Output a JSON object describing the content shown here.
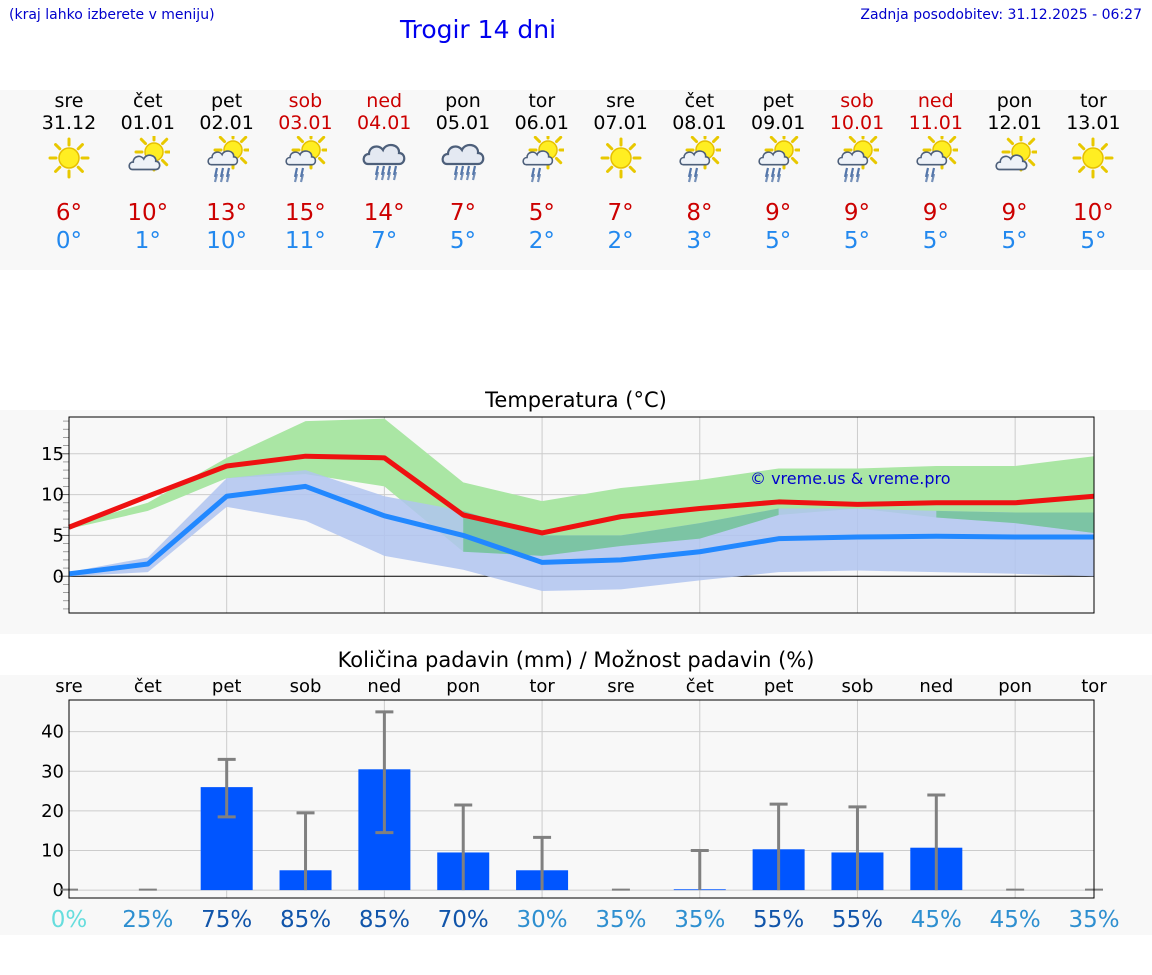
{
  "header": {
    "hint": "(kraj lahko izberete v meniju)",
    "title": "Trogir 14 dni",
    "updated": "Zadnja posodobitev: 31.12.2025 - 06:27"
  },
  "days": [
    {
      "name": "sre",
      "date": "31.12",
      "weekend": false,
      "icon": "sun-icon",
      "tmax": "6°",
      "tmin": "0°"
    },
    {
      "name": "čet",
      "date": "01.01",
      "weekend": false,
      "icon": "sun-cloud-icon",
      "tmax": "10°",
      "tmin": "1°"
    },
    {
      "name": "pet",
      "date": "02.01",
      "weekend": false,
      "icon": "sun-cloud-rain-icon",
      "tmax": "13°",
      "tmin": "10°"
    },
    {
      "name": "sob",
      "date": "03.01",
      "weekend": true,
      "icon": "sun-cloud-light-rain-icon",
      "tmax": "15°",
      "tmin": "11°"
    },
    {
      "name": "ned",
      "date": "04.01",
      "weekend": true,
      "icon": "rain-cloud-icon",
      "tmax": "14°",
      "tmin": "7°"
    },
    {
      "name": "pon",
      "date": "05.01",
      "weekend": false,
      "icon": "rain-cloud-icon",
      "tmax": "7°",
      "tmin": "5°"
    },
    {
      "name": "tor",
      "date": "06.01",
      "weekend": false,
      "icon": "sun-cloud-light-rain-icon",
      "tmax": "5°",
      "tmin": "2°"
    },
    {
      "name": "sre",
      "date": "07.01",
      "weekend": false,
      "icon": "sun-icon",
      "tmax": "7°",
      "tmin": "2°"
    },
    {
      "name": "čet",
      "date": "08.01",
      "weekend": false,
      "icon": "sun-cloud-light-rain-icon",
      "tmax": "8°",
      "tmin": "3°"
    },
    {
      "name": "pet",
      "date": "09.01",
      "weekend": false,
      "icon": "sun-cloud-rain-icon",
      "tmax": "9°",
      "tmin": "5°"
    },
    {
      "name": "sob",
      "date": "10.01",
      "weekend": true,
      "icon": "sun-cloud-rain-icon",
      "tmax": "9°",
      "tmin": "5°"
    },
    {
      "name": "ned",
      "date": "11.01",
      "weekend": true,
      "icon": "sun-cloud-light-rain-icon",
      "tmax": "9°",
      "tmin": "5°"
    },
    {
      "name": "pon",
      "date": "12.01",
      "weekend": false,
      "icon": "sun-cloud-icon",
      "tmax": "9°",
      "tmin": "5°"
    },
    {
      "name": "tor",
      "date": "13.01",
      "weekend": false,
      "icon": "sun-icon",
      "tmax": "10°",
      "tmin": "5°"
    }
  ],
  "colors": {
    "max_line": "#ee1111",
    "min_line": "#2288ff",
    "max_band": "#aae6a4",
    "min_band": "#b0c4f0",
    "overlap": "#7cc4a4",
    "bar": "#0055ff",
    "error": "#808080",
    "weekend": "#cc0000"
  },
  "chart_data": [
    {
      "type": "line",
      "title": "Temperatura (°C)",
      "watermark": "© vreme.us & vreme.pro",
      "ylim": [
        -4.5,
        19.5
      ],
      "yticks": [
        0,
        5,
        10,
        15
      ],
      "series": [
        {
          "name": "max",
          "values": [
            6,
            9.8,
            13.5,
            14.7,
            14.5,
            7.5,
            5.3,
            7.3,
            8.3,
            9.1,
            8.8,
            9.0,
            9.0,
            9.8
          ]
        },
        {
          "name": "min",
          "values": [
            0.3,
            1.5,
            9.8,
            11.0,
            7.4,
            5.0,
            1.7,
            2.0,
            3.0,
            4.6,
            4.8,
            4.9,
            4.8,
            4.8
          ]
        }
      ],
      "bands": [
        {
          "name": "max-range",
          "upper": [
            6.2,
            9.0,
            14.5,
            19.0,
            19.3,
            11.5,
            9.2,
            10.8,
            11.8,
            13.2,
            13.2,
            13.5,
            13.5,
            14.7
          ],
          "lower": [
            5.8,
            8.0,
            12.0,
            12.5,
            11.0,
            3.0,
            2.5,
            3.7,
            4.6,
            7.5,
            8.3,
            7.2,
            6.5,
            5.3
          ]
        },
        {
          "name": "min-range",
          "upper": [
            0.5,
            2.3,
            12.0,
            13.0,
            9.8,
            8.0,
            5.0,
            5.0,
            6.5,
            8.3,
            8.3,
            8.0,
            7.8,
            7.8
          ],
          "lower": [
            0.0,
            0.5,
            8.5,
            6.8,
            2.5,
            0.8,
            -1.8,
            -1.6,
            -0.5,
            0.5,
            0.7,
            0.5,
            0.3,
            0.0
          ]
        }
      ]
    },
    {
      "type": "bar",
      "title": "Količina padavin (mm) / Možnost padavin (%)",
      "categories": [
        "sre",
        "čet",
        "pet",
        "sob",
        "ned",
        "pon",
        "tor",
        "sre",
        "čet",
        "pet",
        "sob",
        "ned",
        "pon",
        "tor"
      ],
      "values": [
        0,
        0,
        26,
        5,
        30.5,
        9.5,
        5,
        0,
        0.2,
        10.3,
        9.5,
        10.7,
        0,
        0
      ],
      "error_low": [
        0,
        0,
        18.5,
        0,
        14.5,
        0,
        0,
        0,
        0,
        0,
        0,
        0,
        0,
        0
      ],
      "error_high": [
        0,
        0,
        33,
        19.5,
        45,
        21.5,
        13.3,
        0,
        10,
        21.7,
        21,
        24,
        0,
        0
      ],
      "ylim": [
        -2,
        48
      ],
      "yticks": [
        0,
        10,
        20,
        30,
        40
      ],
      "probabilities": [
        "0%",
        "25%",
        "75%",
        "85%",
        "85%",
        "70%",
        "30%",
        "35%",
        "35%",
        "55%",
        "55%",
        "45%",
        "45%",
        "35%"
      ],
      "probability_colors": [
        "#66dddd",
        "#2e8fd0",
        "#1155aa",
        "#1155aa",
        "#1155aa",
        "#1155aa",
        "#2e8fd0",
        "#2e8fd0",
        "#2e8fd0",
        "#1155aa",
        "#1155aa",
        "#2e8fd0",
        "#2e8fd0",
        "#2e8fd0"
      ]
    }
  ]
}
